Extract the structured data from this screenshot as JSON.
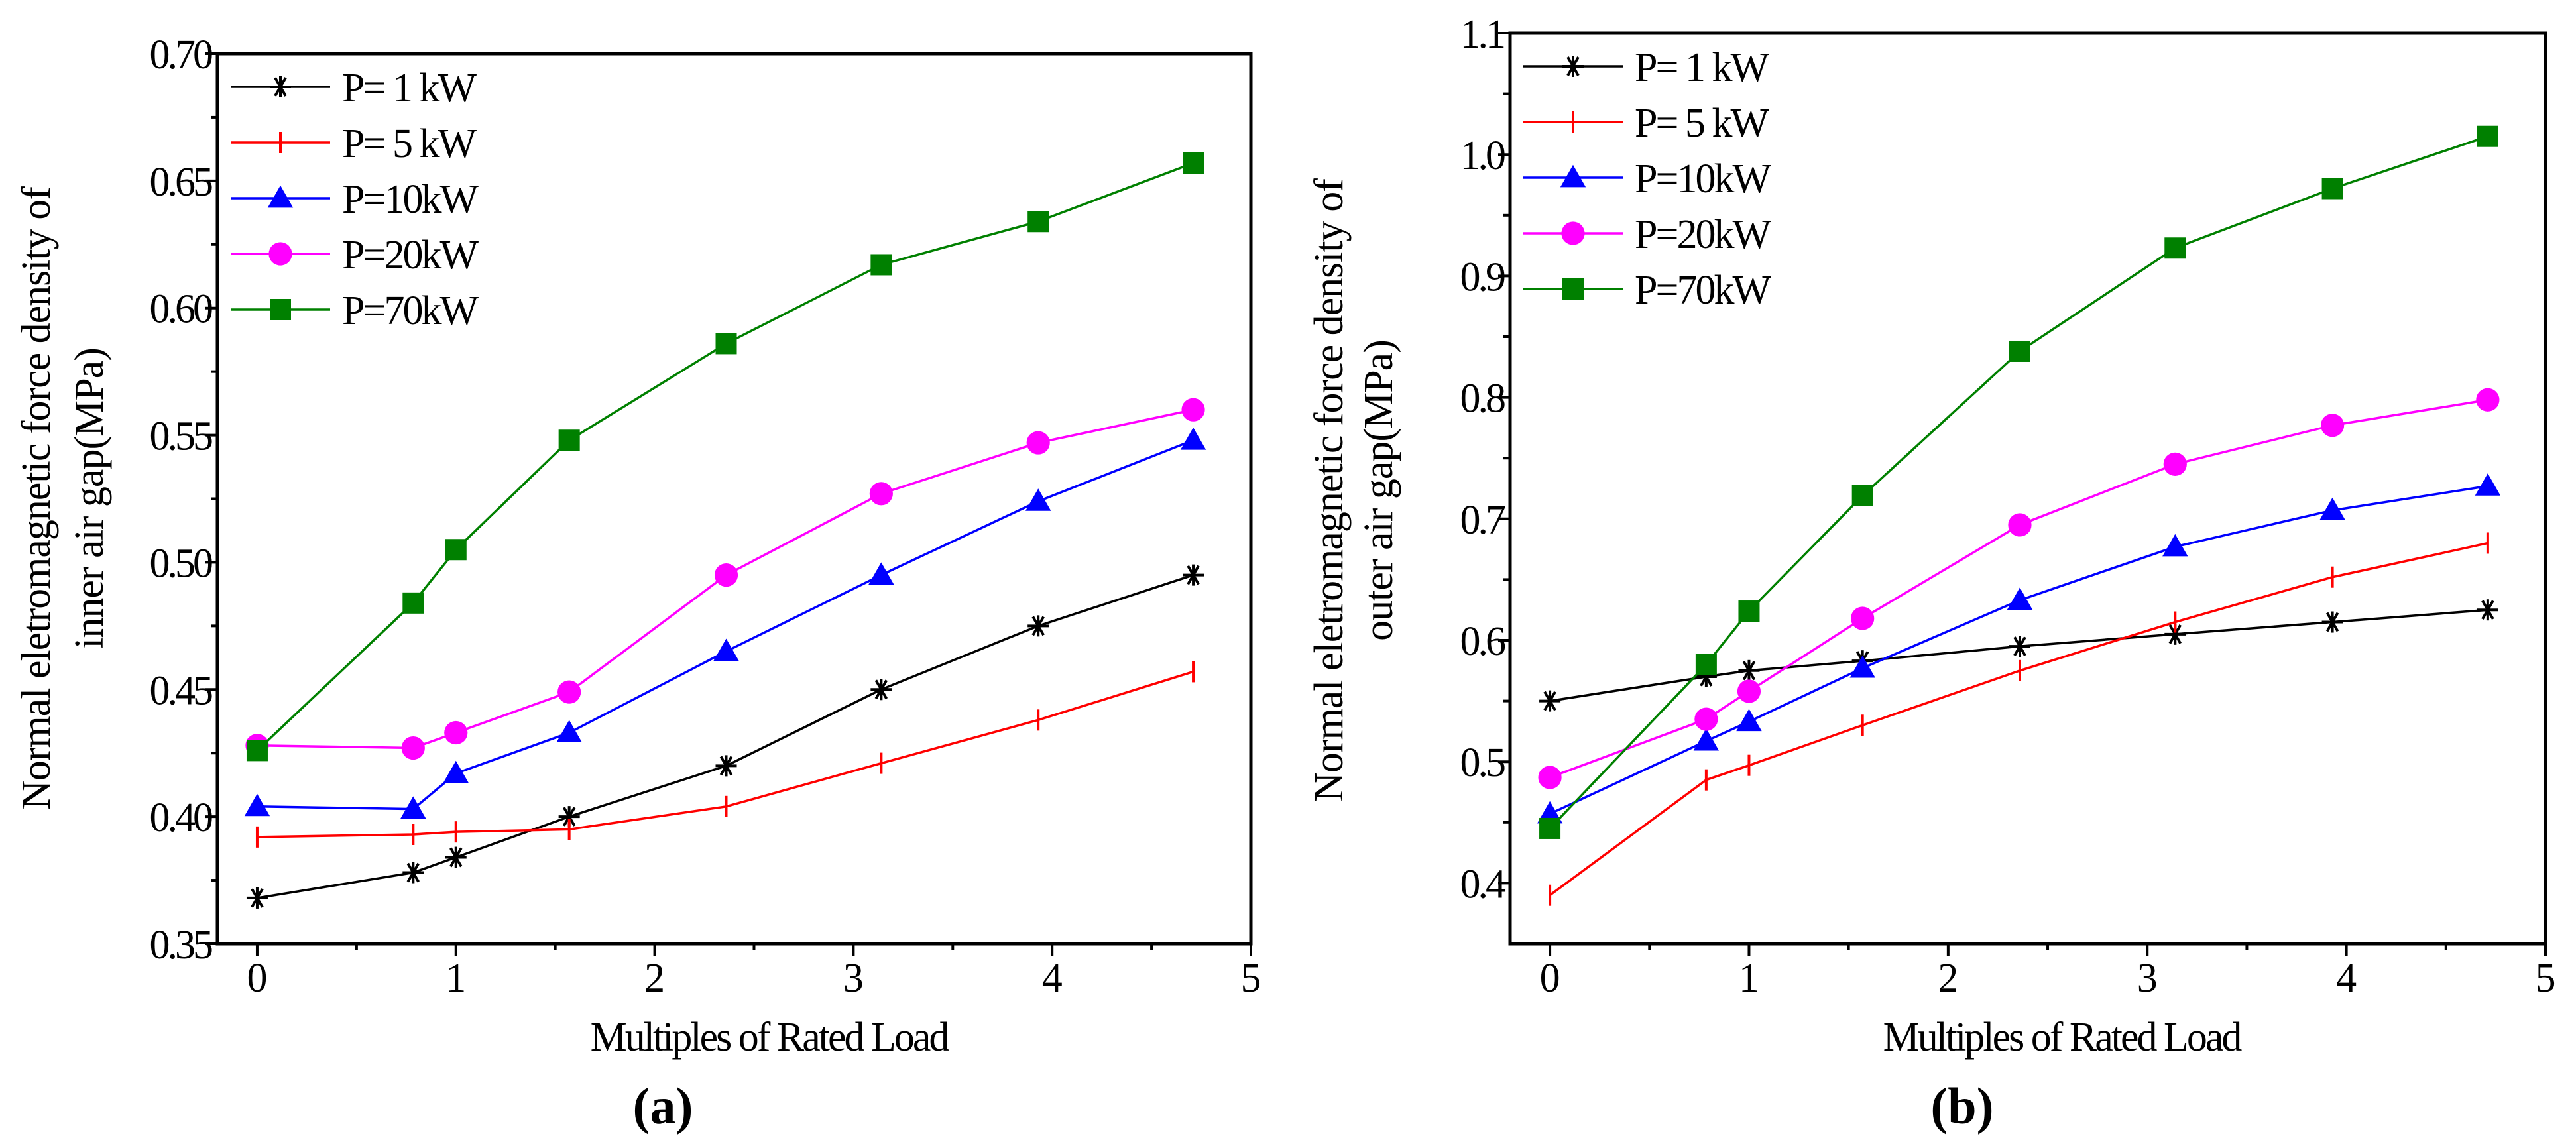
{
  "chart_data": [
    {
      "type": "line",
      "panel_label": "(a)",
      "panel_letter": "a",
      "xlabel": "Multiples of Rated Load",
      "ylabel_line1": "Normal eletromagnetic force density of",
      "ylabel_line2": "inner air gap(MPa)",
      "xlim": [
        -0.2,
        5
      ],
      "ylim": [
        0.35,
        0.7
      ],
      "xticks": [
        0,
        1,
        2,
        3,
        4,
        5
      ],
      "yticks": [
        0.35,
        0.4,
        0.45,
        0.5,
        0.55,
        0.6,
        0.65,
        0.7
      ],
      "ytick_labels": [
        "0.35",
        "0.40",
        "0.45",
        "0.50",
        "0.55",
        "0.60",
        "0.65",
        "0.70"
      ],
      "legend_position": "top-left",
      "x": [
        0,
        0.785,
        1,
        1.57,
        2.36,
        3.14,
        3.93,
        4.71
      ],
      "series": [
        {
          "name": "P= 1 kW",
          "color": "#000000",
          "marker": "asterisk",
          "values": [
            0.368,
            0.378,
            0.384,
            0.4,
            0.42,
            0.45,
            0.475,
            0.495
          ]
        },
        {
          "name": "P= 5 kW",
          "color": "#ff0000",
          "marker": "plus",
          "values": [
            0.392,
            0.393,
            0.394,
            0.395,
            0.404,
            0.421,
            0.438,
            0.457
          ]
        },
        {
          "name": "P=10kW",
          "color": "#0000ff",
          "marker": "triangle",
          "values": [
            0.404,
            0.403,
            0.417,
            0.433,
            0.465,
            0.495,
            0.524,
            0.548
          ]
        },
        {
          "name": "P=20kW",
          "color": "#ff00ff",
          "marker": "circle",
          "values": [
            0.428,
            0.427,
            0.433,
            0.449,
            0.495,
            0.527,
            0.547,
            0.56
          ]
        },
        {
          "name": "P=70kW",
          "color": "#008000",
          "marker": "square",
          "values": [
            0.426,
            0.484,
            0.505,
            0.548,
            0.586,
            0.617,
            0.634,
            0.657
          ]
        }
      ]
    },
    {
      "type": "line",
      "panel_label": "(b)",
      "panel_letter": "b",
      "xlabel": "Multiples of Rated Load",
      "ylabel_line1": "Normal eletromagnetic force density of",
      "ylabel_line2": "outer air gap(MPa)",
      "xlim": [
        -0.2,
        5
      ],
      "ylim": [
        0.35,
        1.1
      ],
      "xticks": [
        0,
        1,
        2,
        3,
        4,
        5
      ],
      "yticks": [
        0.4,
        0.5,
        0.6,
        0.7,
        0.8,
        0.9,
        1.0,
        1.1
      ],
      "ytick_labels": [
        "0.4",
        "0.5",
        "0.6",
        "0.7",
        "0.8",
        "0.9",
        "1.0",
        "1.1"
      ],
      "legend_position": "top-left",
      "x": [
        0,
        0.785,
        1,
        1.57,
        2.36,
        3.14,
        3.93,
        4.71
      ],
      "series": [
        {
          "name": "P= 1 kW",
          "color": "#000000",
          "marker": "asterisk",
          "values": [
            0.55,
            0.57,
            0.575,
            0.583,
            0.595,
            0.605,
            0.615,
            0.625
          ]
        },
        {
          "name": "P= 5 kW",
          "color": "#ff0000",
          "marker": "plus",
          "values": [
            0.39,
            0.485,
            0.497,
            0.53,
            0.575,
            0.615,
            0.652,
            0.68
          ]
        },
        {
          "name": "P=10kW",
          "color": "#0000ff",
          "marker": "triangle",
          "values": [
            0.457,
            0.517,
            0.533,
            0.577,
            0.633,
            0.677,
            0.707,
            0.727
          ]
        },
        {
          "name": "P=20kW",
          "color": "#ff00ff",
          "marker": "circle",
          "values": [
            0.487,
            0.535,
            0.558,
            0.618,
            0.695,
            0.745,
            0.777,
            0.798
          ]
        },
        {
          "name": "P=70kW",
          "color": "#008000",
          "marker": "square",
          "values": [
            0.445,
            0.58,
            0.624,
            0.719,
            0.838,
            0.923,
            0.972,
            1.015
          ]
        }
      ]
    }
  ]
}
